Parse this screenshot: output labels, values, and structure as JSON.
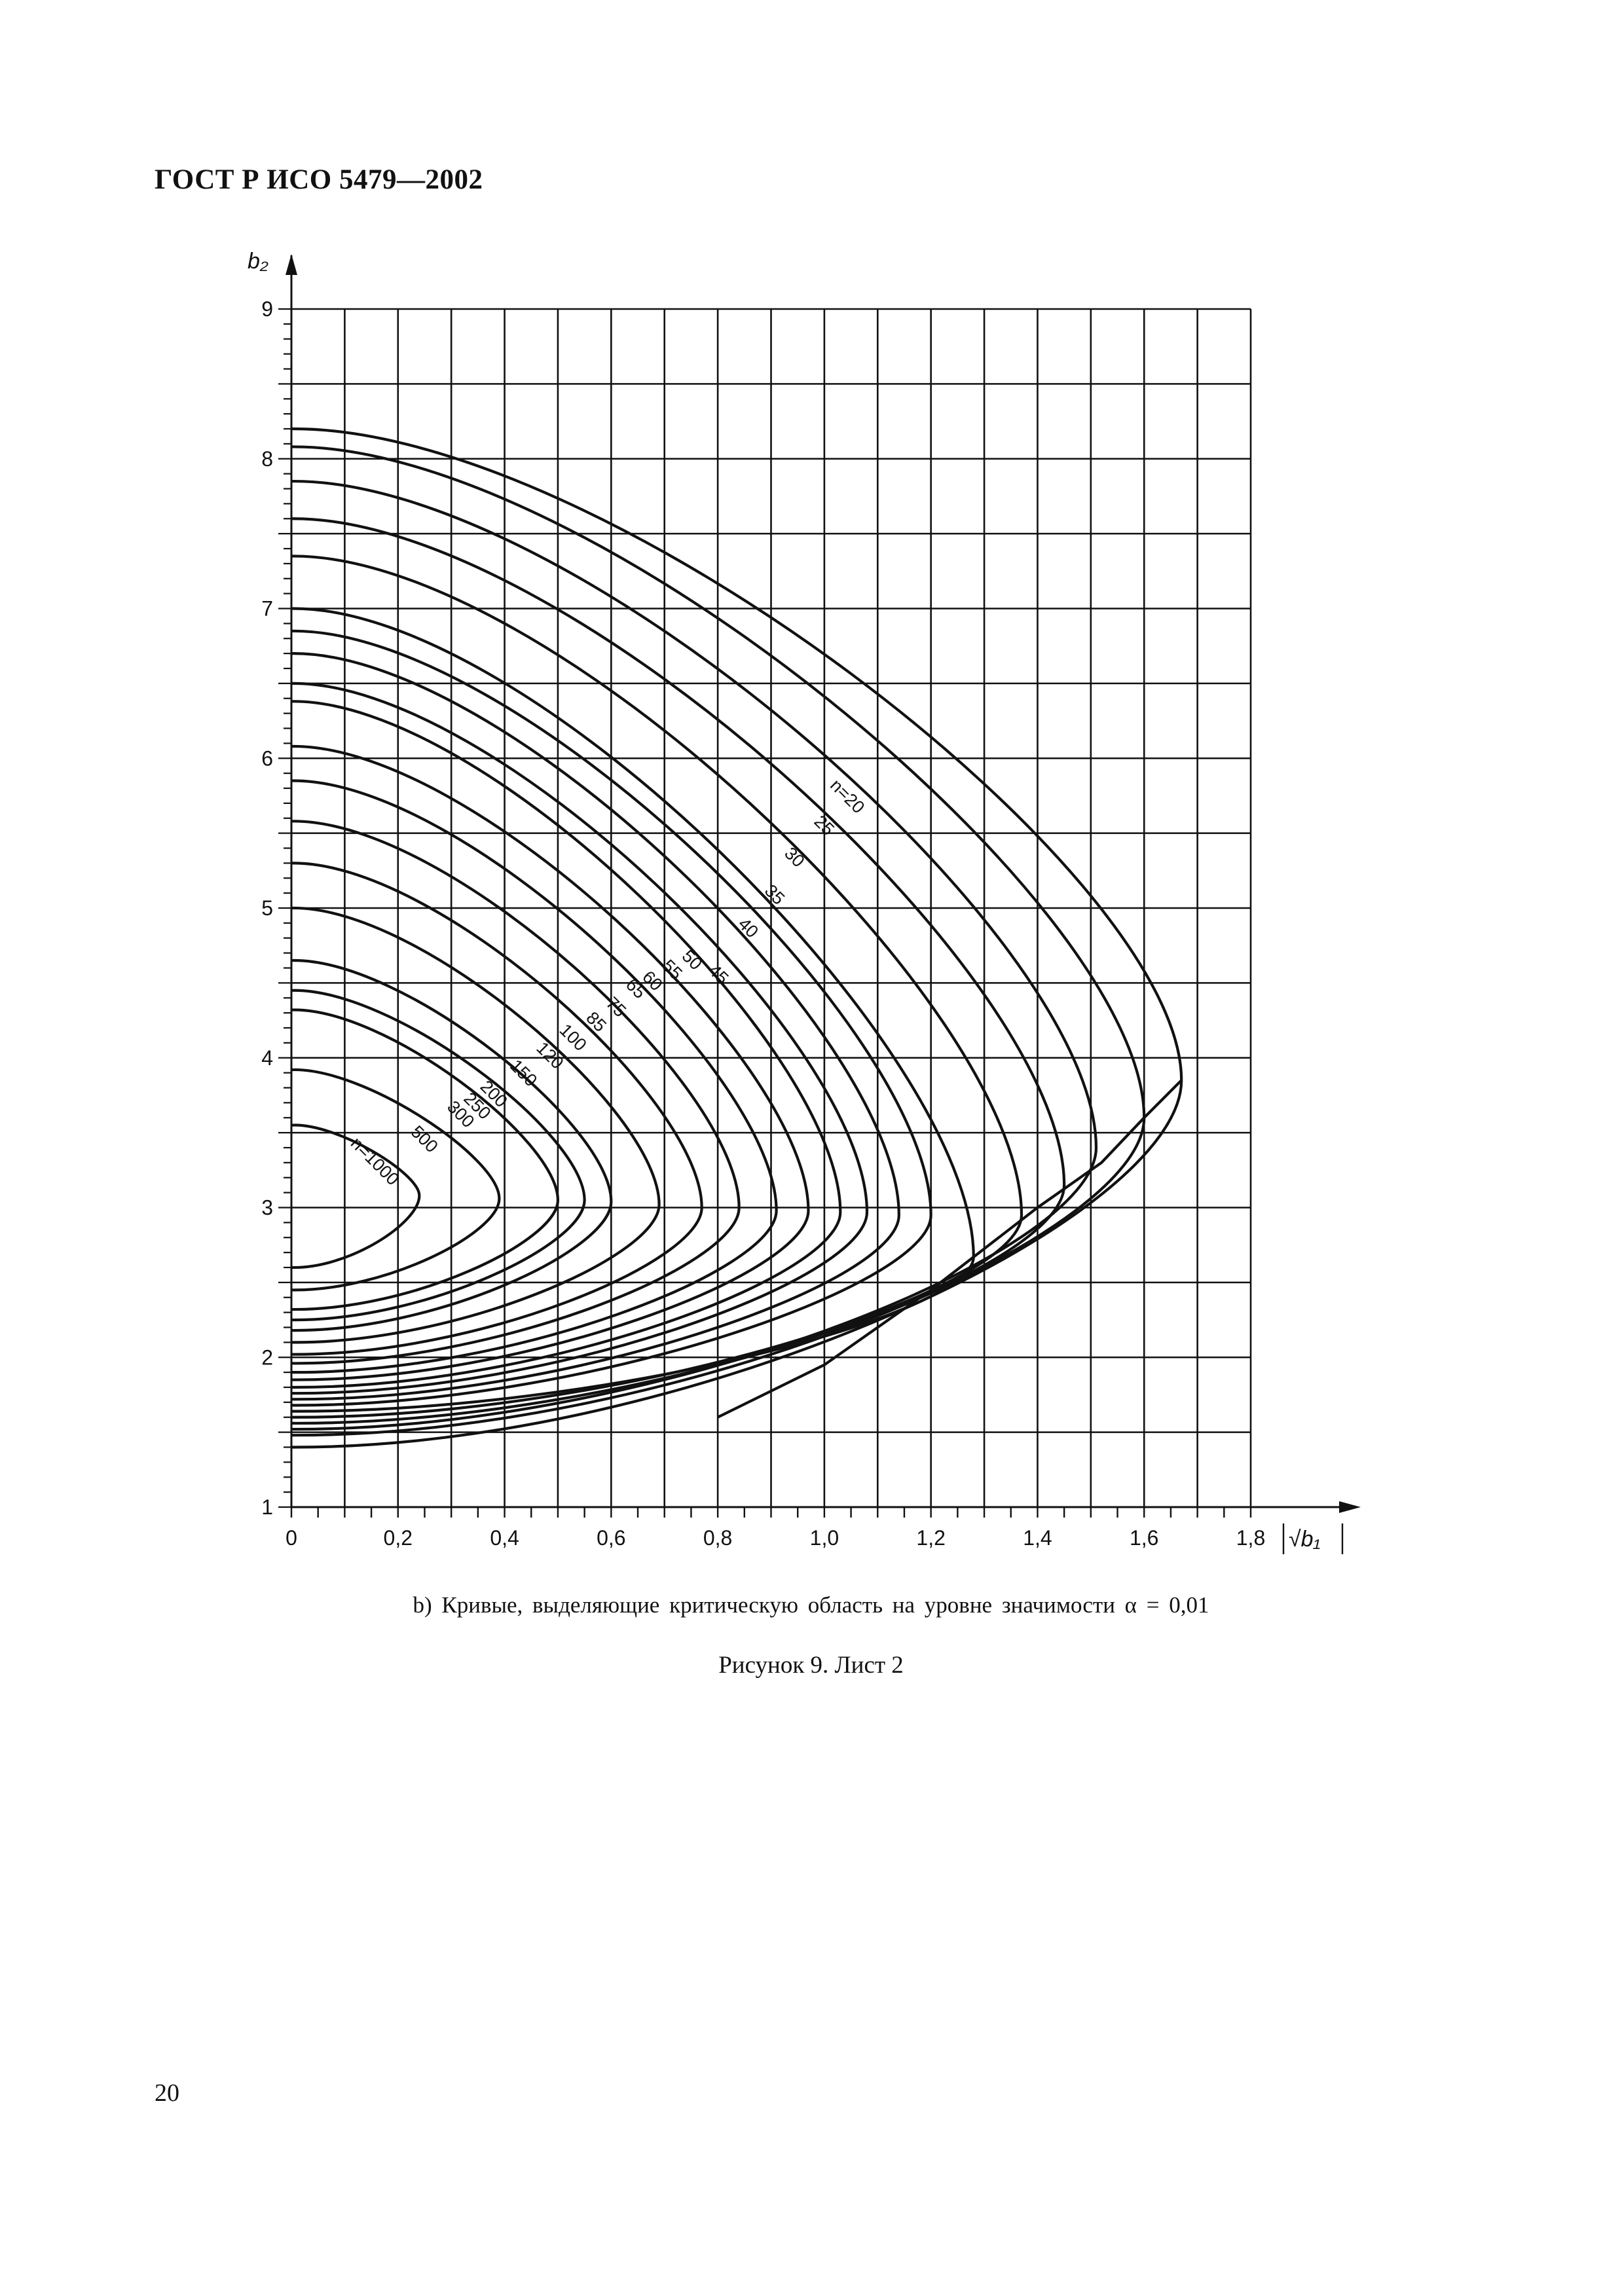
{
  "document": {
    "header": "ГОСТ Р ИСО 5479—2002",
    "subcaption": "b) Кривые, выделяющие критическую область на уровне значимости α = 0,01",
    "figure_caption": "Рисунок 9. Лист 2",
    "page_number": "20"
  },
  "chart_data": {
    "type": "line",
    "title": "",
    "xlabel": "√b₁",
    "ylabel": "b₂",
    "xlim": [
      0,
      1.8
    ],
    "ylim": [
      1,
      9
    ],
    "x_ticks": [
      "0",
      "0,2",
      "0,4",
      "0,6",
      "0,8",
      "1,0",
      "1,2",
      "1,4",
      "1,6",
      "1,8"
    ],
    "y_ticks": [
      "1",
      "2",
      "3",
      "4",
      "5",
      "6",
      "7",
      "8",
      "9"
    ],
    "grid": true,
    "series": [
      {
        "name": "n=20",
        "label": "n=20",
        "top": 8.2,
        "tip_x": 1.67,
        "tip_y": 3.85,
        "bottom": 1.4
      },
      {
        "name": "25",
        "label": "25",
        "top": 8.08,
        "tip_x": 1.6,
        "tip_y": 3.6,
        "bottom": 1.48
      },
      {
        "name": "30",
        "label": "30",
        "top": 7.85,
        "tip_x": 1.51,
        "tip_y": 3.4,
        "bottom": 1.52
      },
      {
        "name": "35",
        "label": "35",
        "top": 7.6,
        "tip_x": 1.45,
        "tip_y": 3.15,
        "bottom": 1.56
      },
      {
        "name": "40",
        "label": "40",
        "top": 7.35,
        "tip_x": 1.37,
        "tip_y": 2.95,
        "bottom": 1.6
      },
      {
        "name": "45",
        "label": "45",
        "top": 7.0,
        "tip_x": 1.28,
        "tip_y": 2.67,
        "bottom": 1.64
      },
      {
        "name": "50",
        "label": "50",
        "top": 6.85,
        "tip_x": 1.2,
        "tip_y": 2.95,
        "bottom": 1.68
      },
      {
        "name": "55",
        "label": "55",
        "top": 6.7,
        "tip_x": 1.14,
        "tip_y": 2.95,
        "bottom": 1.72
      },
      {
        "name": "60",
        "label": "60",
        "top": 6.5,
        "tip_x": 1.08,
        "tip_y": 2.97,
        "bottom": 1.76
      },
      {
        "name": "65",
        "label": "65",
        "top": 6.38,
        "tip_x": 1.03,
        "tip_y": 2.97,
        "bottom": 1.8
      },
      {
        "name": "75",
        "label": "75",
        "top": 6.08,
        "tip_x": 0.97,
        "tip_y": 2.98,
        "bottom": 1.85
      },
      {
        "name": "85",
        "label": "85",
        "top": 5.85,
        "tip_x": 0.91,
        "tip_y": 2.98,
        "bottom": 1.9
      },
      {
        "name": "100",
        "label": "100",
        "top": 5.58,
        "tip_x": 0.84,
        "tip_y": 3.0,
        "bottom": 1.96
      },
      {
        "name": "120",
        "label": "120",
        "top": 5.3,
        "tip_x": 0.77,
        "tip_y": 3.0,
        "bottom": 2.02
      },
      {
        "name": "150",
        "label": "150",
        "top": 5.0,
        "tip_x": 0.69,
        "tip_y": 3.02,
        "bottom": 2.1
      },
      {
        "name": "200",
        "label": "200",
        "top": 4.65,
        "tip_x": 0.6,
        "tip_y": 3.04,
        "bottom": 2.18
      },
      {
        "name": "250",
        "label": "250",
        "top": 4.45,
        "tip_x": 0.55,
        "tip_y": 3.05,
        "bottom": 2.25
      },
      {
        "name": "300",
        "label": "300",
        "top": 4.32,
        "tip_x": 0.5,
        "tip_y": 3.05,
        "bottom": 2.32
      },
      {
        "name": "500",
        "label": "500",
        "top": 3.92,
        "tip_x": 0.39,
        "tip_y": 3.06,
        "bottom": 2.45
      },
      {
        "name": "n=1000",
        "label": "n=1000",
        "top": 3.55,
        "tip_x": 0.24,
        "tip_y": 3.08,
        "bottom": 2.6
      }
    ],
    "envelope": {
      "points": [
        [
          0.8,
          1.6
        ],
        [
          1.0,
          1.95
        ],
        [
          1.2,
          2.45
        ],
        [
          1.4,
          3.0
        ],
        [
          1.52,
          3.3
        ],
        [
          1.6,
          3.6
        ],
        [
          1.67,
          3.85
        ]
      ]
    }
  }
}
